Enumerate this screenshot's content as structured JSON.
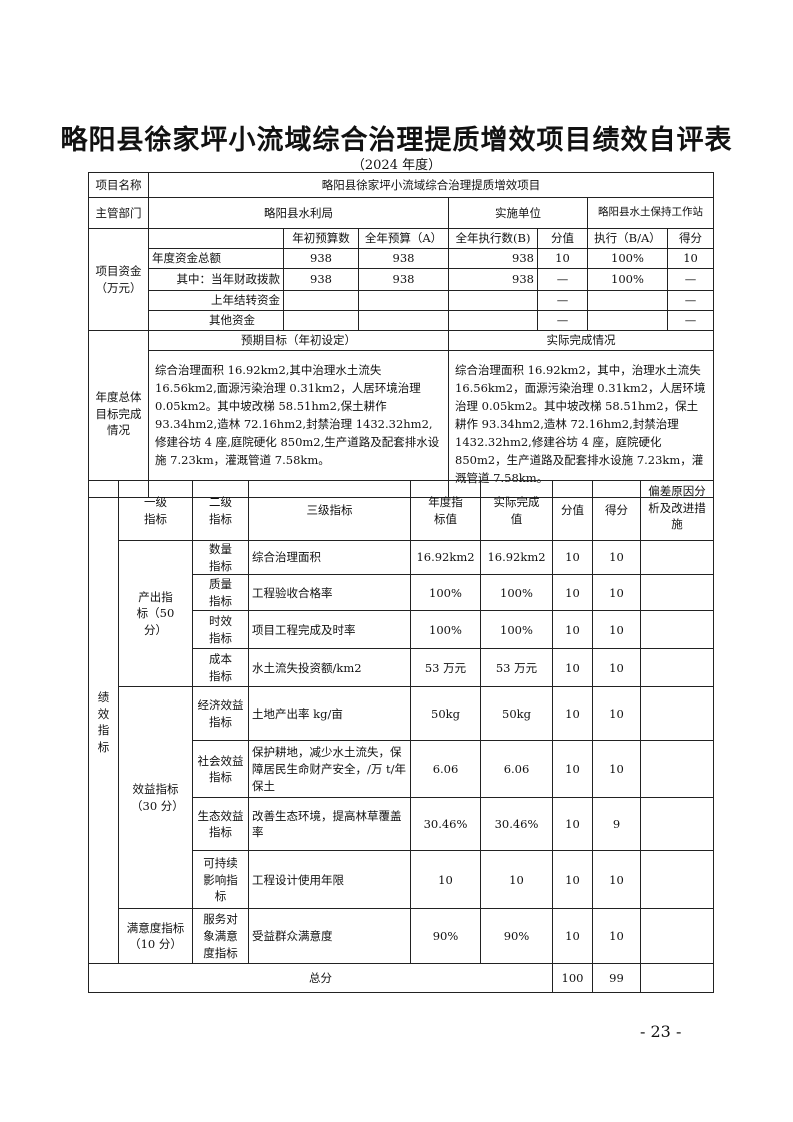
{
  "title": "略阳县徐家坪小流域综合治理提质增效项目绩效自评表",
  "subtitle": "（2024 年度）",
  "project": {
    "name_label": "项目名称",
    "name": "略阳县徐家坪小流域综合治理提质增效项目",
    "dept_label": "主管部门",
    "dept": "略阳县水利局",
    "impl_label": "实施单位",
    "impl": "略阳县水土保持工作站"
  },
  "funds": {
    "label": "项目资金（万元）",
    "headers": [
      "年初预算数",
      "全年预算（A）",
      "全年执行数(B)",
      "分值",
      "执行（B/A）",
      "得分"
    ],
    "rows": [
      {
        "name": "年度资金总额",
        "vals": [
          "938",
          "938",
          "938",
          "10",
          "100%",
          "10"
        ]
      },
      {
        "name": "其中：当年财政拨款",
        "vals": [
          "938",
          "938",
          "938",
          "—",
          "100%",
          "—"
        ]
      },
      {
        "name": "上年结转资金",
        "vals": [
          "",
          "",
          "",
          "—",
          "",
          "—"
        ]
      },
      {
        "name": "其他资金",
        "vals": [
          "",
          "",
          "",
          "—",
          "",
          "—"
        ]
      }
    ]
  },
  "goals": {
    "label": "年度总体目标完成情况",
    "planned_label": "预期目标（年初设定）",
    "actual_label": "实际完成情况",
    "planned": "综合治理面积 16.92km2,其中治理水土流失 16.56km2,面源污染治理 0.31km2，人居环境治理 0.05km2。其中坡改梯 58.51hm2,保土耕作 93.34hm2,造林 72.16hm2,封禁治理 1432.32hm2,修建谷坊 4 座,庭院硬化 850m2,生产道路及配套排水设施 7.23km，灌溉管道 7.58km。",
    "actual": "综合治理面积 16.92km2，其中，治理水土流失 16.56km2，面源污染治理 0.31km2，人居环境治理 0.05km2。其中坡改梯 58.51hm2，保土耕作 93.34hm2,造林 72.16hm2,封禁治理 1432.32hm2,修建谷坊 4 座，庭院硬化 850m2，生产道路及配套排水设施 7.23km，灌溉管道 7.58km。"
  },
  "indicators": {
    "side_label": "绩效指标",
    "headers": [
      "一级指标",
      "二级指标",
      "三级指标",
      "年度指标值",
      "实际完成值",
      "分值",
      "得分",
      "偏差原因分析及改进措施"
    ],
    "groups": [
      "产出指标（50 分）",
      "效益指标（30 分）",
      "满意度指标（10 分）"
    ],
    "rows": [
      {
        "l2": "数量指标",
        "l3": "综合治理面积",
        "target": "16.92km2",
        "actual": "16.92km2",
        "score_max": "10",
        "score": "10"
      },
      {
        "l2": "质量指标",
        "l3": "工程验收合格率",
        "target": "100%",
        "actual": "100%",
        "score_max": "10",
        "score": "10"
      },
      {
        "l2": "时效指标",
        "l3": "项目工程完成及时率",
        "target": "100%",
        "actual": "100%",
        "score_max": "10",
        "score": "10"
      },
      {
        "l2": "成本指标",
        "l3": "水土流失投资额/km2",
        "target": "53 万元",
        "actual": "53 万元",
        "score_max": "10",
        "score": "10"
      },
      {
        "l2": "经济效益指标",
        "l3": "土地产出率 kg/亩",
        "target": "50kg",
        "actual": "50kg",
        "score_max": "10",
        "score": "10"
      },
      {
        "l2": "社会效益指标",
        "l3": "保护耕地，减少水土流失，保障居民生命财产安全，/万 t/年保土",
        "target": "6.06",
        "actual": "6.06",
        "score_max": "10",
        "score": "10"
      },
      {
        "l2": "生态效益指标",
        "l3": "改善生态环境，提高林草覆盖率",
        "target": "30.46%",
        "actual": "30.46%",
        "score_max": "10",
        "score": "9"
      },
      {
        "l2": "可持续影响指标",
        "l3": "工程设计使用年限",
        "target": "10",
        "actual": "10",
        "score_max": "10",
        "score": "10"
      },
      {
        "l2": "服务对象满意度指标",
        "l3": "受益群众满意度",
        "target": "90%",
        "actual": "90%",
        "score_max": "10",
        "score": "10"
      }
    ],
    "total_label": "总分",
    "total_max": "100",
    "total_score": "99"
  },
  "page_number": "- 23 -"
}
